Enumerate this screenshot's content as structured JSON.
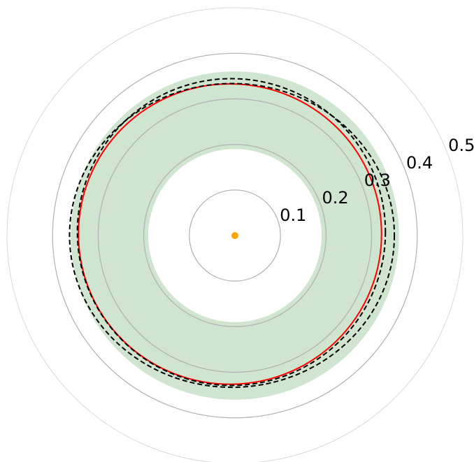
{
  "chart_data": {
    "type": "polar",
    "title": "",
    "radial_ticks": [
      {
        "value": 0.1,
        "label": "0.1"
      },
      {
        "value": 0.2,
        "label": "0.2"
      },
      {
        "value": 0.3,
        "label": "0.3"
      },
      {
        "value": 0.4,
        "label": "0.4"
      },
      {
        "value": 0.5,
        "label": "0.5"
      }
    ],
    "rlim": [
      0,
      0.5
    ],
    "grid": true,
    "center_marker": {
      "r": 0,
      "color": "#ffa500"
    },
    "band": {
      "inner": 0.19,
      "outer": 0.36,
      "color": "#cfe5d0"
    },
    "orbits": [
      {
        "style": "solid",
        "color": "#ff0000",
        "offset_x": -0.0108,
        "offset_y": -0.0033,
        "rx": 0.3325,
        "ry": 0.3296
      },
      {
        "style": "dashed",
        "color": "#000000",
        "offset_x": -0.0077,
        "offset_y": -0.0077,
        "rx": 0.3379,
        "ry": 0.3366
      },
      {
        "style": "dashed",
        "color": "#000000",
        "offset_x": -0.0065,
        "offset_y": -0.0003,
        "rx": 0.3563,
        "ry": 0.3333
      }
    ]
  }
}
